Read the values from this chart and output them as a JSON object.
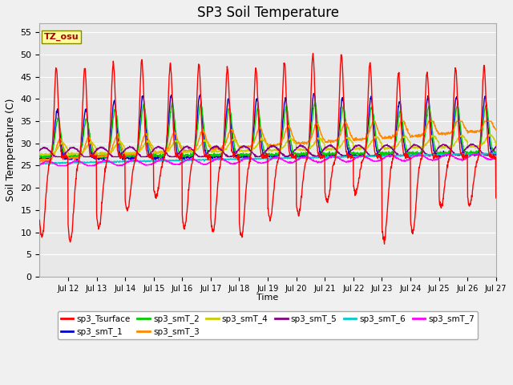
{
  "title": "SP3 Soil Temperature",
  "xlabel": "Time",
  "ylabel": "Soil Temperature (C)",
  "ylim": [
    0,
    57
  ],
  "yticks": [
    0,
    5,
    10,
    15,
    20,
    25,
    30,
    35,
    40,
    45,
    50,
    55
  ],
  "xtick_labels": [
    "Jul 12",
    "Jul 13",
    "Jul 14",
    "Jul 15",
    "Jul 16",
    "Jul 17",
    "Jul 18",
    "Jul 19",
    "Jul 20",
    "Jul 21",
    "Jul 22",
    "Jul 23",
    "Jul 24",
    "Jul 25",
    "Jul 26",
    "Jul 27"
  ],
  "bg_color": "#e8e8e8",
  "grid_color": "#ffffff",
  "colors": {
    "sp3_Tsurface": "#ff0000",
    "sp3_smT_1": "#0000cc",
    "sp3_smT_2": "#00cc00",
    "sp3_smT_3": "#ff8800",
    "sp3_smT_4": "#cccc00",
    "sp3_smT_5": "#880088",
    "sp3_smT_6": "#00cccc",
    "sp3_smT_7": "#ff00ff"
  },
  "tz_label": "TZ_osu",
  "annotation_box_color": "#ffff99",
  "annotation_text_color": "#aa0000"
}
